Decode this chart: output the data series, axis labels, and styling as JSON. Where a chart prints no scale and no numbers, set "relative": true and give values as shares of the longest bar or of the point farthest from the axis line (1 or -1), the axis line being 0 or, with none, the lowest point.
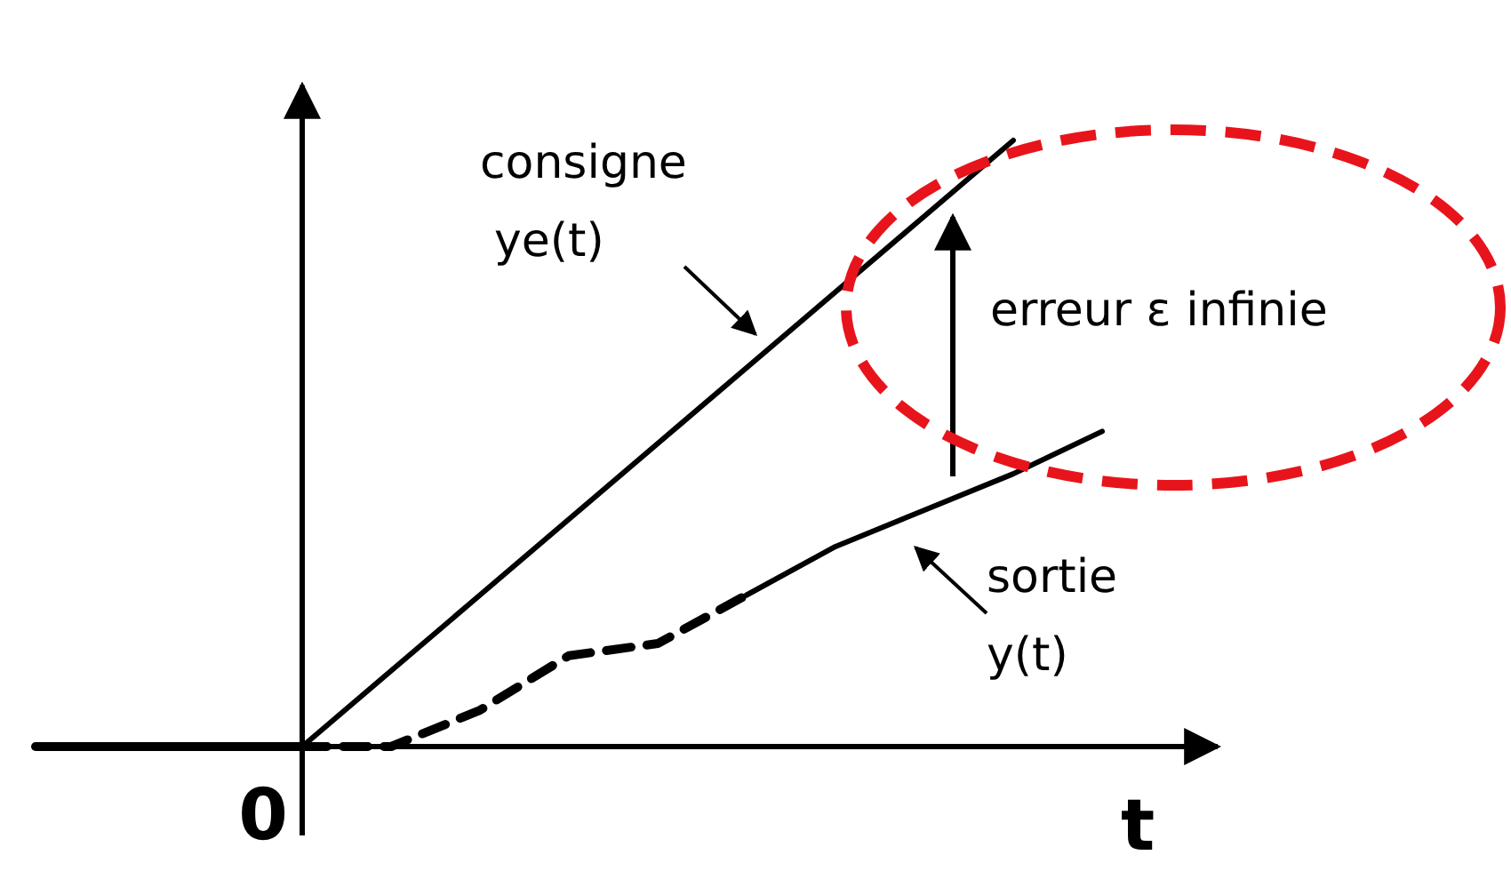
{
  "chart_data": {
    "type": "line",
    "relative": true,
    "xlabel": "t",
    "categories": [
      null,
      null,
      null,
      null,
      null,
      null,
      null,
      null,
      null,
      null,
      null,
      null,
      null
    ],
    "series": [
      {
        "color": "#000000",
        "line_style": "solid",
        "values": [
          0,
          0,
          0,
          0,
          null,
          null,
          null,
          null,
          null,
          null,
          null,
          null,
          null
        ]
      },
      {
        "name": "consigne ye(t)",
        "color": "#000000",
        "line_style": "solid",
        "values": [
          null,
          null,
          null,
          0,
          0.125,
          0.25,
          0.375,
          0.5,
          0.625,
          0.75,
          0.875,
          1,
          null
        ]
      },
      {
        "color": "#000000",
        "line_style": "dashed",
        "values": [
          null,
          null,
          null,
          0,
          0,
          0.06,
          0.15,
          0.17,
          0.25,
          null,
          null,
          null,
          null
        ]
      },
      {
        "name": "sortie y(t)",
        "color": "#000000",
        "line_style": "solid",
        "values": [
          null,
          null,
          null,
          null,
          null,
          null,
          null,
          null,
          0.25,
          0.33,
          0.39,
          0.45,
          0.52
        ]
      }
    ],
    "annotations": [
      "erreur ε infinie",
      "0"
    ],
    "grid": false,
    "marker": "none"
  }
}
